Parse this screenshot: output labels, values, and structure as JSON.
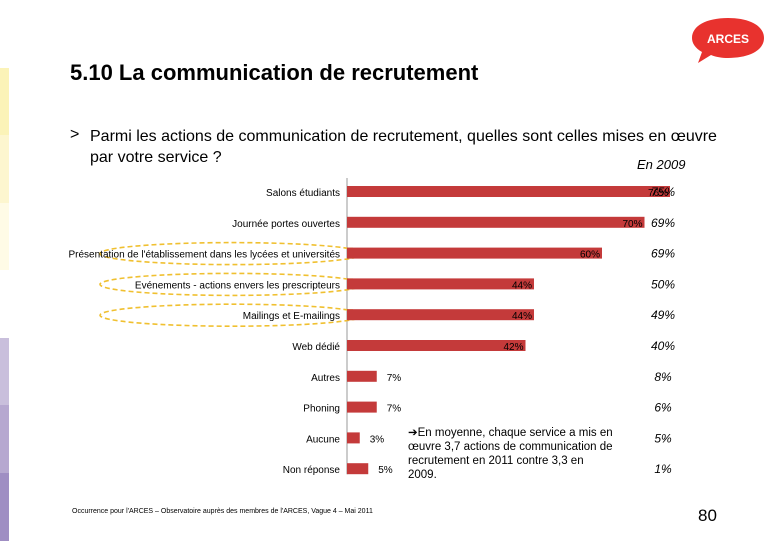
{
  "slide": {
    "title": "5.10 La communication de recrutement",
    "question_marker": ">",
    "question": "Parmi les actions de communication de recrutement, quelles sont celles mises en œuvre par votre service ?",
    "prev_year_header": "En 2009",
    "average_note": "En moyenne, chaque service a mis en œuvre 3,7 actions de communication de recrutement en 2011 contre 3,3 en 2009.",
    "footnote": "Occurrence pour l'ARCES – Observatoire auprès des membres de l'ARCES, Vague 4 – Mai 2011",
    "page_number": "80",
    "logo_text": "ARCES"
  },
  "colors": {
    "bar": "#c43a3a",
    "highlight": "#f0c030",
    "logo": "#e8322e",
    "strips": [
      "#ffffff",
      "#fbf3b8",
      "#fdf6cf",
      "#fffbe6",
      "#ffffff",
      "#c9bfdc",
      "#b6a8d0",
      "#9f8ec3"
    ]
  },
  "chart_data": {
    "type": "bar",
    "orientation": "horizontal",
    "categories": [
      "Salons étudiants",
      "Journée portes ouvertes",
      "Présentation de l'établissement dans les lycées et universités",
      "Evénements - actions envers les prescripteurs",
      "Mailings et E-mailings",
      "Web dédié",
      "Autres",
      "Phoning",
      "Aucune",
      "Non réponse"
    ],
    "values": [
      76,
      70,
      60,
      44,
      44,
      42,
      7,
      7,
      3,
      5
    ],
    "value_labels": [
      "76%",
      "70%",
      "60%",
      "44%",
      "44%",
      "42%",
      "7%",
      "7%",
      "3%",
      "5%"
    ],
    "series_2009": [
      "75%",
      "69%",
      "69%",
      "50%",
      "49%",
      "40%",
      "8%",
      "6%",
      "5%",
      "1%"
    ],
    "highlighted": [
      false,
      false,
      true,
      true,
      true,
      false,
      false,
      false,
      false,
      false
    ],
    "xlim": [
      0,
      100
    ]
  }
}
